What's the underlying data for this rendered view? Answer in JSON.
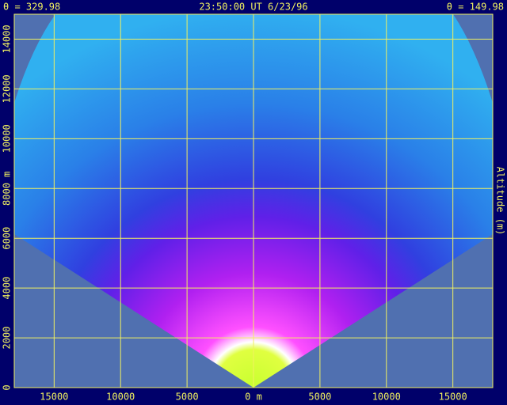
{
  "header": {
    "left": "θ = 329.98",
    "center": "23:50:00 UT   6/23/96",
    "right": "θ = 149.98"
  },
  "chart_data": {
    "type": "scan",
    "y_label": "Altitude (m)",
    "xlim": [
      -18000,
      18000
    ],
    "ylim": [
      0,
      15000
    ],
    "xticks": [
      {
        "value": -15000,
        "label": "15000"
      },
      {
        "value": -10000,
        "label": "10000"
      },
      {
        "value": -5000,
        "label": "5000"
      },
      {
        "value": 0,
        "label": "0 m"
      },
      5000,
      10000,
      15000
    ],
    "yticks": [
      0,
      2000,
      4000,
      6000,
      {
        "value": 8000,
        "label": "8000 m"
      },
      10000,
      12000,
      14000
    ],
    "grid": true
  }
}
